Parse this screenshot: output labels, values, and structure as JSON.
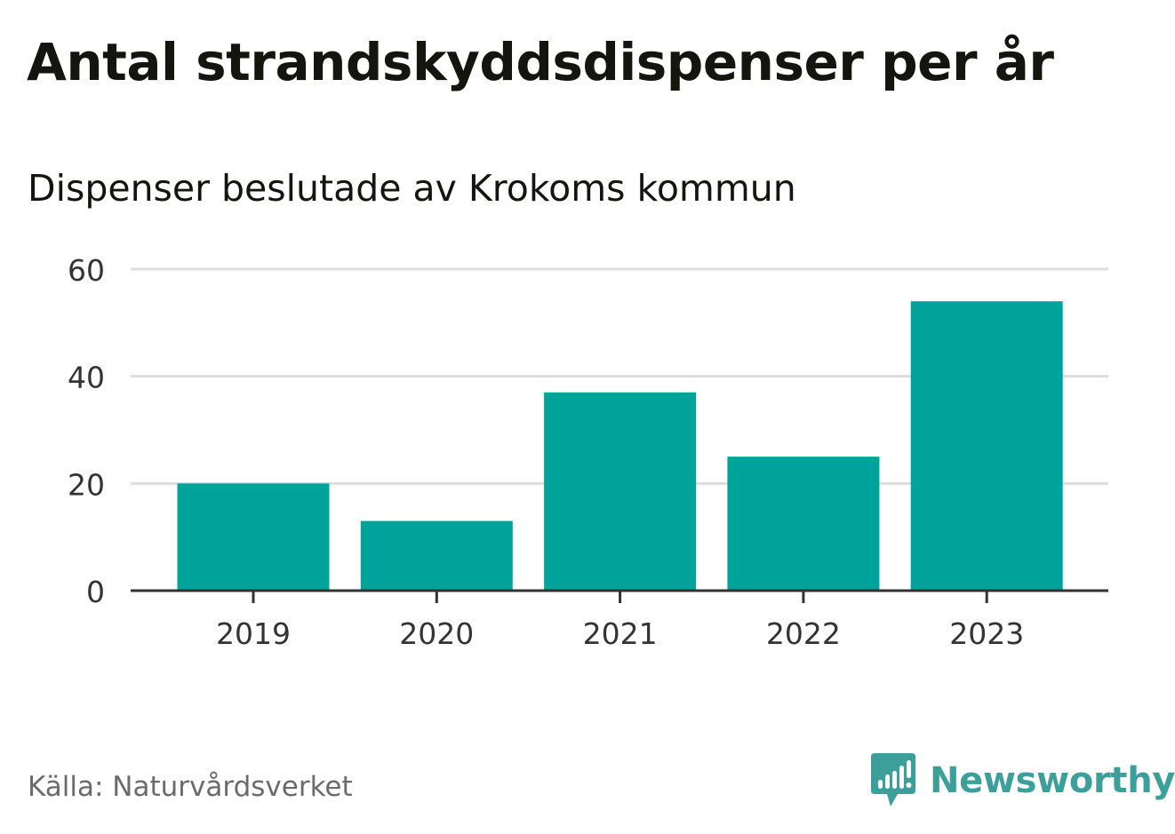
{
  "title": "Antal strandskyddsdispenser per år",
  "subtitle": "Dispenser beslutade av Krokoms kommun",
  "source": "Källa: Naturvårdsverket",
  "brand": {
    "name": "Newsworthy",
    "icon": "newsworthy-logo-icon",
    "color": "#3c9f99"
  },
  "colors": {
    "bar": "#00a39a",
    "grid": "#dddddd",
    "axis": "#333333",
    "tick_label": "#333333"
  },
  "chart_data": {
    "type": "bar",
    "title": "Antal strandskyddsdispenser per år",
    "subtitle": "Dispenser beslutade av Krokoms kommun",
    "categories": [
      "2019",
      "2020",
      "2021",
      "2022",
      "2023"
    ],
    "values": [
      20,
      13,
      37,
      25,
      54
    ],
    "xlabel": "",
    "ylabel": "",
    "ylim": [
      0,
      60
    ],
    "yticks": [
      0,
      20,
      40,
      60
    ],
    "grid": true,
    "legend": "none"
  }
}
